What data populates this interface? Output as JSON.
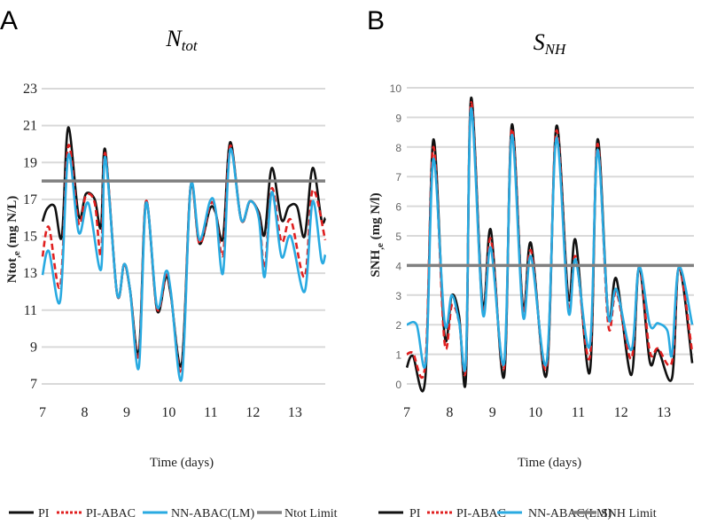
{
  "chart_data": [
    {
      "panel": "A",
      "type": "line",
      "title": {
        "main": "N",
        "sub": "tot"
      },
      "xlabel": "Time (days)",
      "ylabel": {
        "main": "Ntot",
        "sub": ",e",
        "rest": " (mg N/L)"
      },
      "xlim": [
        7,
        13.72
      ],
      "ylim": [
        7,
        23
      ],
      "xticks": [
        7,
        8,
        9,
        10,
        11,
        12,
        13
      ],
      "yticks": [
        7,
        9,
        11,
        13,
        15,
        17,
        19,
        21,
        23
      ],
      "grid": true,
      "legend_position": "bottom",
      "limit": {
        "name": "Ntot Limit",
        "value": 18,
        "color": "#808080"
      },
      "series": [
        {
          "name": "PI",
          "color": "#111111",
          "style": "solid",
          "points": [
            [
              7.0,
              15.8
            ],
            [
              7.11,
              16.5
            ],
            [
              7.29,
              16.6
            ],
            [
              7.46,
              15.0
            ],
            [
              7.61,
              20.9
            ],
            [
              7.86,
              16.1
            ],
            [
              8.03,
              17.3
            ],
            [
              8.24,
              17.0
            ],
            [
              8.39,
              15.5
            ],
            [
              8.49,
              19.7
            ],
            [
              8.77,
              11.9
            ],
            [
              8.94,
              13.5
            ],
            [
              9.08,
              12.1
            ],
            [
              9.29,
              8.7
            ],
            [
              9.46,
              16.9
            ],
            [
              9.72,
              11.0
            ],
            [
              9.93,
              12.8
            ],
            [
              10.05,
              11.8
            ],
            [
              10.31,
              8.1
            ],
            [
              10.52,
              17.7
            ],
            [
              10.73,
              14.6
            ],
            [
              10.98,
              16.5
            ],
            [
              11.11,
              16.3
            ],
            [
              11.29,
              14.9
            ],
            [
              11.46,
              20.1
            ],
            [
              11.72,
              15.9
            ],
            [
              11.93,
              16.9
            ],
            [
              12.14,
              16.3
            ],
            [
              12.28,
              15.1
            ],
            [
              12.45,
              18.7
            ],
            [
              12.68,
              15.9
            ],
            [
              12.85,
              16.6
            ],
            [
              13.05,
              16.6
            ],
            [
              13.23,
              15.0
            ],
            [
              13.42,
              18.7
            ],
            [
              13.63,
              15.9
            ],
            [
              13.72,
              16.0
            ]
          ]
        },
        {
          "name": "PI-ABAC",
          "color": "#e02020",
          "style": "dashed",
          "points": [
            [
              7.0,
              13.9
            ],
            [
              7.15,
              15.5
            ],
            [
              7.42,
              12.3
            ],
            [
              7.61,
              19.9
            ],
            [
              7.86,
              15.7
            ],
            [
              8.03,
              17.2
            ],
            [
              8.24,
              16.8
            ],
            [
              8.39,
              14.0
            ],
            [
              8.49,
              19.5
            ],
            [
              8.77,
              11.9
            ],
            [
              8.94,
              13.5
            ],
            [
              9.08,
              12.1
            ],
            [
              9.29,
              8.4
            ],
            [
              9.46,
              16.9
            ],
            [
              9.72,
              11.1
            ],
            [
              9.93,
              12.9
            ],
            [
              10.05,
              11.9
            ],
            [
              10.31,
              7.7
            ],
            [
              10.52,
              17.7
            ],
            [
              10.73,
              14.6
            ],
            [
              10.98,
              16.7
            ],
            [
              11.11,
              16.4
            ],
            [
              11.29,
              14.0
            ],
            [
              11.46,
              19.9
            ],
            [
              11.72,
              15.9
            ],
            [
              11.93,
              16.9
            ],
            [
              12.14,
              16.1
            ],
            [
              12.28,
              13.3
            ],
            [
              12.45,
              17.6
            ],
            [
              12.68,
              14.7
            ],
            [
              12.9,
              15.9
            ],
            [
              13.23,
              12.8
            ],
            [
              13.42,
              17.5
            ],
            [
              13.72,
              14.8
            ]
          ]
        },
        {
          "name": "NN-ABAC(LM)",
          "color": "#29aae1",
          "style": "solid",
          "points": [
            [
              7.0,
              12.9
            ],
            [
              7.15,
              14.2
            ],
            [
              7.42,
              11.5
            ],
            [
              7.61,
              19.4
            ],
            [
              7.86,
              15.2
            ],
            [
              8.09,
              16.8
            ],
            [
              8.39,
              13.2
            ],
            [
              8.49,
              19.3
            ],
            [
              8.77,
              11.9
            ],
            [
              8.94,
              13.5
            ],
            [
              9.08,
              12.1
            ],
            [
              9.29,
              7.9
            ],
            [
              9.46,
              16.8
            ],
            [
              9.72,
              11.2
            ],
            [
              9.93,
              13.1
            ],
            [
              10.05,
              12.0
            ],
            [
              10.31,
              7.3
            ],
            [
              10.52,
              17.7
            ],
            [
              10.73,
              14.8
            ],
            [
              10.98,
              16.9
            ],
            [
              11.11,
              16.5
            ],
            [
              11.29,
              13.0
            ],
            [
              11.46,
              19.7
            ],
            [
              11.72,
              15.9
            ],
            [
              11.93,
              16.9
            ],
            [
              12.14,
              16.0
            ],
            [
              12.28,
              12.8
            ],
            [
              12.45,
              17.4
            ],
            [
              12.68,
              13.9
            ],
            [
              12.9,
              15.0
            ],
            [
              13.23,
              12.0
            ],
            [
              13.42,
              16.9
            ],
            [
              13.63,
              13.7
            ],
            [
              13.72,
              14.0
            ]
          ]
        }
      ]
    },
    {
      "panel": "B",
      "type": "line",
      "title": {
        "main": "S",
        "sub": "NH"
      },
      "xlabel": "Time (days)",
      "ylabel": {
        "main": "SNH",
        "sub": ",e",
        "rest": " (mg N/l)"
      },
      "xlim": [
        7,
        13.7
      ],
      "ylim": [
        0,
        10
      ],
      "xticks": [
        7,
        8,
        9,
        10,
        11,
        12,
        13
      ],
      "yticks": [
        0,
        1,
        2,
        3,
        4,
        5,
        6,
        7,
        8,
        9,
        10
      ],
      "grid": true,
      "legend_position": "bottom",
      "limit": {
        "name": "SNH Limit",
        "value": 4,
        "color": "#808080"
      },
      "series": [
        {
          "name": "PI",
          "color": "#111111",
          "style": "solid",
          "points": [
            [
              7.0,
              0.55
            ],
            [
              7.14,
              0.95
            ],
            [
              7.43,
              0.15
            ],
            [
              7.62,
              8.25
            ],
            [
              7.88,
              1.65
            ],
            [
              8.05,
              3.0
            ],
            [
              8.22,
              2.3
            ],
            [
              8.38,
              0.2
            ],
            [
              8.5,
              9.65
            ],
            [
              8.77,
              2.65
            ],
            [
              8.96,
              5.2
            ],
            [
              9.27,
              0.25
            ],
            [
              9.45,
              8.75
            ],
            [
              9.71,
              2.6
            ],
            [
              9.9,
              4.75
            ],
            [
              10.26,
              0.3
            ],
            [
              10.49,
              8.7
            ],
            [
              10.77,
              2.9
            ],
            [
              10.94,
              4.85
            ],
            [
              11.27,
              0.4
            ],
            [
              11.45,
              8.25
            ],
            [
              11.7,
              2.3
            ],
            [
              11.89,
              3.55
            ],
            [
              12.24,
              0.3
            ],
            [
              12.42,
              3.95
            ],
            [
              12.67,
              0.75
            ],
            [
              12.86,
              1.15
            ],
            [
              13.19,
              0.2
            ],
            [
              13.35,
              3.95
            ],
            [
              13.66,
              0.7
            ]
          ]
        },
        {
          "name": "PI-ABAC",
          "color": "#e02020",
          "style": "dashed",
          "points": [
            [
              7.0,
              1.0
            ],
            [
              7.14,
              1.05
            ],
            [
              7.43,
              0.65
            ],
            [
              7.62,
              8.0
            ],
            [
              7.88,
              1.4
            ],
            [
              8.05,
              2.65
            ],
            [
              8.22,
              2.1
            ],
            [
              8.38,
              0.65
            ],
            [
              8.5,
              9.5
            ],
            [
              8.77,
              2.5
            ],
            [
              8.96,
              4.9
            ],
            [
              9.27,
              0.55
            ],
            [
              9.45,
              8.6
            ],
            [
              9.71,
              2.5
            ],
            [
              9.9,
              4.5
            ],
            [
              10.26,
              0.55
            ],
            [
              10.49,
              8.55
            ],
            [
              10.77,
              2.6
            ],
            [
              10.94,
              4.3
            ],
            [
              11.27,
              0.9
            ],
            [
              11.45,
              8.1
            ],
            [
              11.7,
              2.0
            ],
            [
              11.89,
              3.1
            ],
            [
              12.24,
              0.85
            ],
            [
              12.42,
              3.95
            ],
            [
              12.67,
              1.1
            ],
            [
              12.86,
              1.2
            ],
            [
              13.19,
              0.75
            ],
            [
              13.35,
              3.95
            ],
            [
              13.66,
              1.05
            ]
          ]
        },
        {
          "name": "NN-ABAC(LM)",
          "color": "#29aae1",
          "style": "solid",
          "points": [
            [
              7.0,
              2.0
            ],
            [
              7.23,
              2.0
            ],
            [
              7.45,
              0.8
            ],
            [
              7.62,
              7.6
            ],
            [
              7.88,
              2.1
            ],
            [
              8.05,
              3.0
            ],
            [
              8.22,
              2.1
            ],
            [
              8.38,
              0.8
            ],
            [
              8.5,
              9.3
            ],
            [
              8.77,
              2.4
            ],
            [
              8.96,
              4.6
            ],
            [
              9.27,
              0.7
            ],
            [
              9.45,
              8.4
            ],
            [
              9.71,
              2.3
            ],
            [
              9.9,
              4.3
            ],
            [
              10.26,
              0.7
            ],
            [
              10.49,
              8.3
            ],
            [
              10.77,
              2.45
            ],
            [
              10.94,
              4.2
            ],
            [
              11.27,
              1.3
            ],
            [
              11.45,
              7.9
            ],
            [
              11.7,
              2.3
            ],
            [
              11.89,
              3.2
            ],
            [
              12.24,
              1.15
            ],
            [
              12.42,
              3.95
            ],
            [
              12.67,
              2.0
            ],
            [
              12.86,
              2.05
            ],
            [
              13.08,
              1.8
            ],
            [
              13.19,
              1.0
            ],
            [
              13.35,
              3.95
            ],
            [
              13.66,
              2.0
            ]
          ]
        }
      ]
    }
  ]
}
